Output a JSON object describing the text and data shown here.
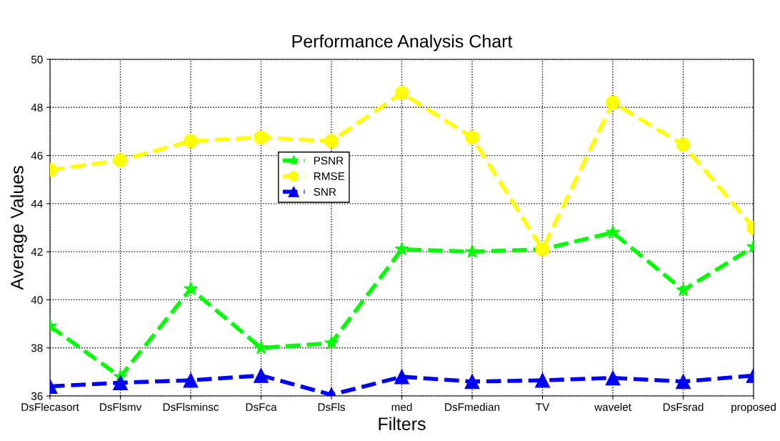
{
  "chart_data": {
    "type": "line",
    "title": "Performance Analysis Chart",
    "xlabel": "Filters",
    "ylabel": "Average Values",
    "categories": [
      "DsFlecasort",
      "DsFlsmv",
      "DsFlsminsc",
      "DsFca",
      "DsFls",
      "med",
      "DsFmedian",
      "TV",
      "wavelet",
      "DsFsrad",
      "proposed"
    ],
    "series": [
      {
        "name": "PSNR",
        "color": "#00ff00",
        "marker": "star",
        "values": [
          38.9,
          36.8,
          40.45,
          38.0,
          38.2,
          42.1,
          42.0,
          42.1,
          42.8,
          40.4,
          42.2
        ]
      },
      {
        "name": "RMSE",
        "color": "#ffff00",
        "marker": "circle",
        "values": [
          45.4,
          45.8,
          46.6,
          46.75,
          46.6,
          48.6,
          46.75,
          42.1,
          48.2,
          46.45,
          43.0
        ]
      },
      {
        "name": "SNR",
        "color": "#0000ff",
        "marker": "triangle",
        "values": [
          36.4,
          36.55,
          36.65,
          36.85,
          36.05,
          36.8,
          36.6,
          36.65,
          36.75,
          36.6,
          36.85
        ]
      }
    ],
    "ylim": [
      36,
      50
    ],
    "yticks": [
      36,
      38,
      40,
      42,
      44,
      46,
      48,
      50
    ],
    "grid": true,
    "legend": "center",
    "line_style": "dashed"
  }
}
